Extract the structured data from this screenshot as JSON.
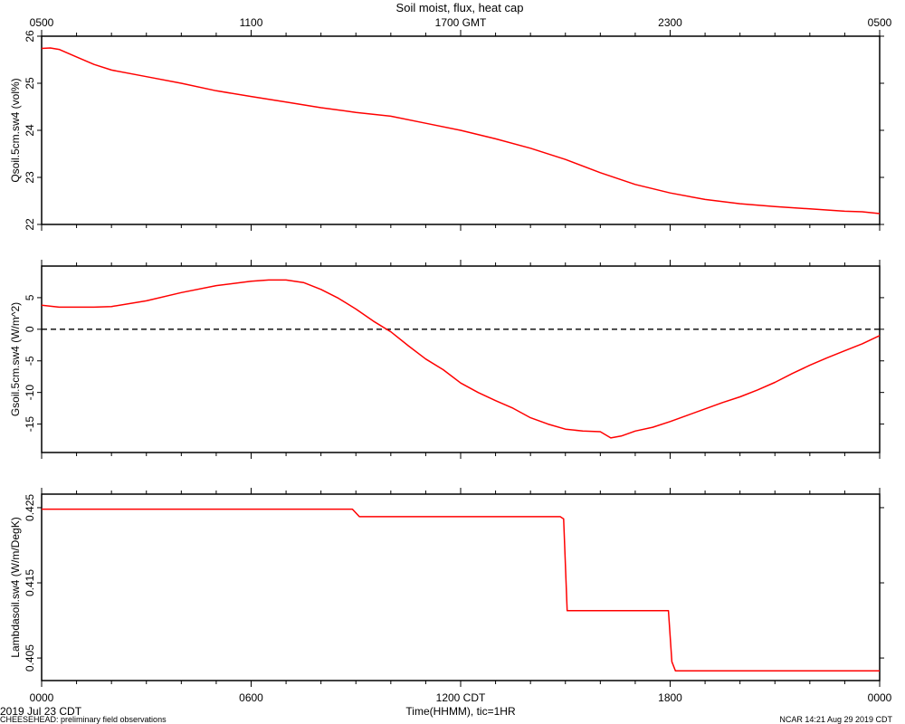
{
  "colors": {
    "series": "#ff0000",
    "axes": "#000000",
    "zero_line": "#000000",
    "background": "#ffffff"
  },
  "chart_data": {
    "type": "line",
    "title": "Soil moist, flux, heat cap",
    "top_axis": {
      "ticks": [
        {
          "h": 0,
          "label": "0500"
        },
        {
          "h": 6,
          "label": "1100"
        },
        {
          "h": 12,
          "label": "1700 GMT"
        },
        {
          "h": 18,
          "label": "2300"
        },
        {
          "h": 24,
          "label": "0500"
        }
      ]
    },
    "bottom_axis": {
      "ticks": [
        {
          "h": 0,
          "label": "0000"
        },
        {
          "h": 6,
          "label": "0600"
        },
        {
          "h": 12,
          "label": "1200 CDT"
        },
        {
          "h": 18,
          "label": "1800"
        },
        {
          "h": 24,
          "label": "0000"
        }
      ],
      "xlabel": "Time(HHMM), tic=1HR",
      "xlim": [
        0,
        24
      ]
    },
    "footer": {
      "date": "2019 Jul 23 CDT",
      "project": "CHEESEHEAD: preliminary field observations",
      "stamp": "NCAR 14:21 Aug 29 2019 CDT"
    },
    "panels": [
      {
        "ylabel": "Qsoil.5cm.sw4 (vol%)",
        "ylim": [
          22,
          26
        ],
        "ticks": [
          {
            "v": 22,
            "label": "22"
          },
          {
            "v": 23,
            "label": "23"
          },
          {
            "v": 24,
            "label": "24"
          },
          {
            "v": 25,
            "label": "25"
          },
          {
            "v": 26,
            "label": "26"
          }
        ],
        "x": [
          0,
          0.25,
          0.5,
          1,
          1.5,
          2,
          3,
          4,
          5,
          6,
          7,
          8,
          9,
          10,
          11,
          12,
          13,
          14,
          15,
          16,
          17,
          18,
          19,
          20,
          21,
          22,
          23,
          23.5,
          24
        ],
        "y": [
          25.74,
          25.75,
          25.72,
          25.56,
          25.4,
          25.28,
          25.14,
          25.0,
          24.84,
          24.72,
          24.6,
          24.48,
          24.38,
          24.3,
          24.15,
          24.0,
          23.82,
          23.62,
          23.38,
          23.1,
          22.85,
          22.67,
          22.53,
          22.44,
          22.38,
          22.33,
          22.28,
          22.27,
          22.23
        ]
      },
      {
        "ylabel": "Gsoil.5cm.sw4 (W/m^2)",
        "ylim": [
          -19.5,
          10
        ],
        "ticks": [
          {
            "v": -15,
            "label": "-15"
          },
          {
            "v": -10,
            "label": "-10"
          },
          {
            "v": -5,
            "label": "-5"
          },
          {
            "v": 0,
            "label": "0"
          },
          {
            "v": 5,
            "label": "5"
          }
        ],
        "zero_line": 0,
        "x": [
          0,
          0.5,
          1,
          1.5,
          2,
          3,
          4,
          5,
          6,
          6.5,
          7,
          7.5,
          8,
          8.5,
          9,
          9.5,
          10,
          10.5,
          11,
          11.5,
          12,
          12.5,
          13,
          13.5,
          14,
          14.5,
          15,
          15.5,
          16,
          16.3,
          16.6,
          17,
          17.5,
          18,
          18.5,
          19,
          19.5,
          20,
          20.5,
          21,
          21.5,
          22,
          22.5,
          23,
          23.5,
          24
        ],
        "y": [
          3.8,
          3.5,
          3.5,
          3.5,
          3.6,
          4.5,
          5.8,
          6.9,
          7.6,
          7.8,
          7.8,
          7.4,
          6.3,
          4.9,
          3.2,
          1.3,
          -0.4,
          -2.6,
          -4.7,
          -6.4,
          -8.5,
          -10.0,
          -11.3,
          -12.5,
          -14.0,
          -15.0,
          -15.8,
          -16.1,
          -16.2,
          -17.2,
          -16.9,
          -16.1,
          -15.5,
          -14.6,
          -13.6,
          -12.6,
          -11.6,
          -10.7,
          -9.6,
          -8.4,
          -7.0,
          -5.7,
          -4.5,
          -3.4,
          -2.3,
          -1.0
        ]
      },
      {
        "ylabel": "Lambdasoil.sw4 (W/m/DegK)",
        "ylim": [
          0.402,
          0.4268
        ],
        "ticks": [
          {
            "v": 0.405,
            "label": "0.405"
          },
          {
            "v": 0.415,
            "label": "0.415"
          },
          {
            "v": 0.425,
            "label": "0.425"
          }
        ],
        "x": [
          0,
          8.9,
          9.1,
          14.85,
          14.95,
          15.05,
          17.95,
          18.05,
          18.15,
          24
        ],
        "y": [
          0.4248,
          0.4248,
          0.4238,
          0.4238,
          0.4235,
          0.4113,
          0.4113,
          0.4045,
          0.4033,
          0.4033
        ]
      }
    ]
  }
}
